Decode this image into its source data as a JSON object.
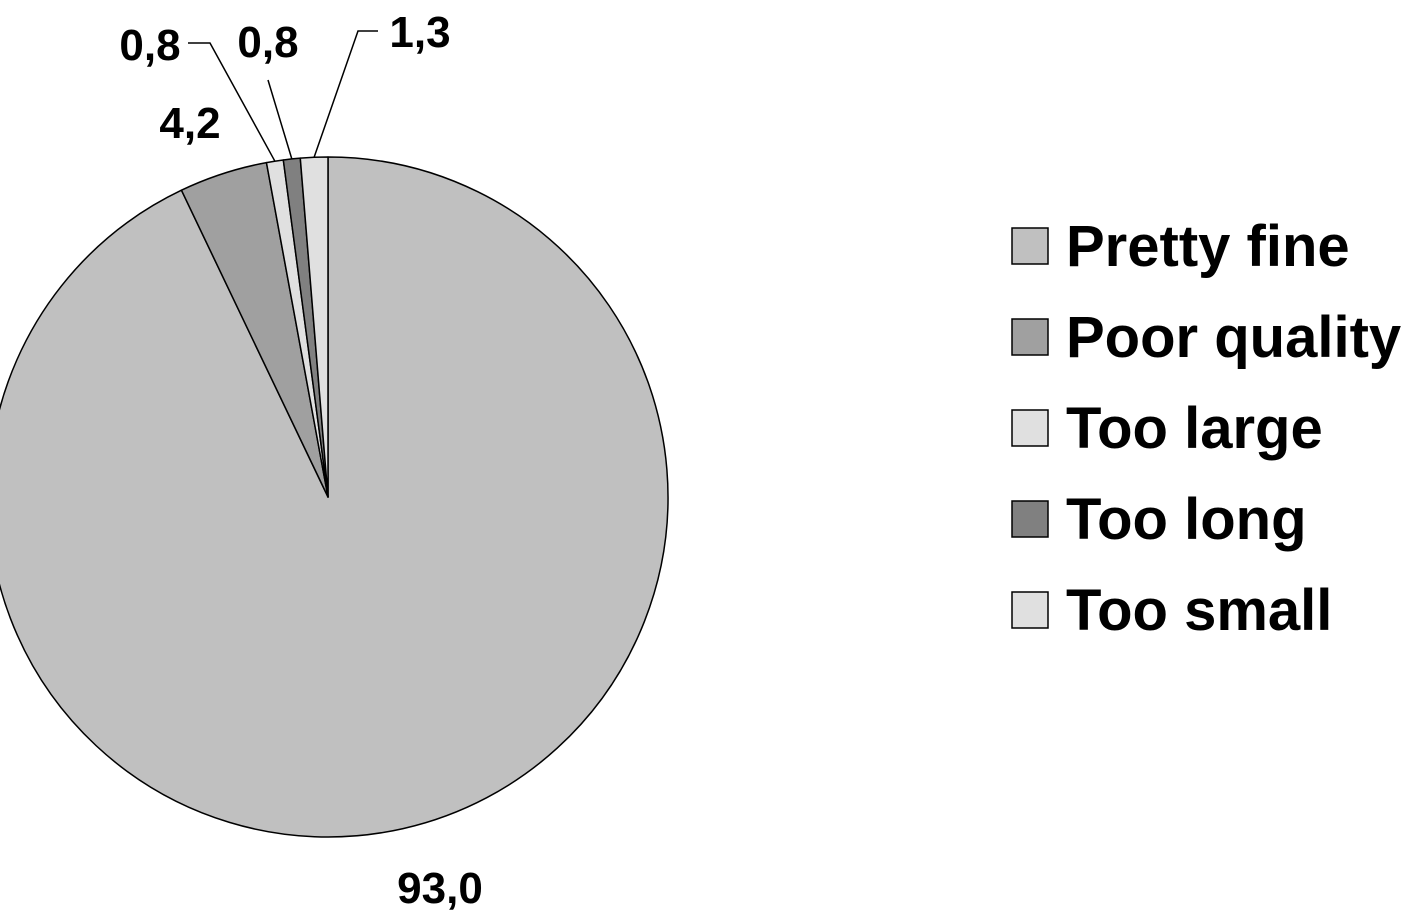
{
  "chart_data": {
    "type": "pie",
    "slices": [
      {
        "name": "Pretty fine",
        "value": 93.0,
        "label": "93,0",
        "color": "#c0c0c0"
      },
      {
        "name": "Poor quality",
        "value": 4.2,
        "label": "4,2",
        "color": "#a0a0a0"
      },
      {
        "name": "Too large",
        "value": 0.8,
        "label": "0,8",
        "color": "#e0e0e0"
      },
      {
        "name": "Too long",
        "value": 0.8,
        "label": "0,8",
        "color": "#808080"
      },
      {
        "name": "Too small",
        "value": 1.3,
        "label": "1,3",
        "color": "#e0e0e0"
      }
    ],
    "start_angle_deg": 0,
    "direction": "clockwise",
    "legend_position": "right",
    "title": ""
  }
}
